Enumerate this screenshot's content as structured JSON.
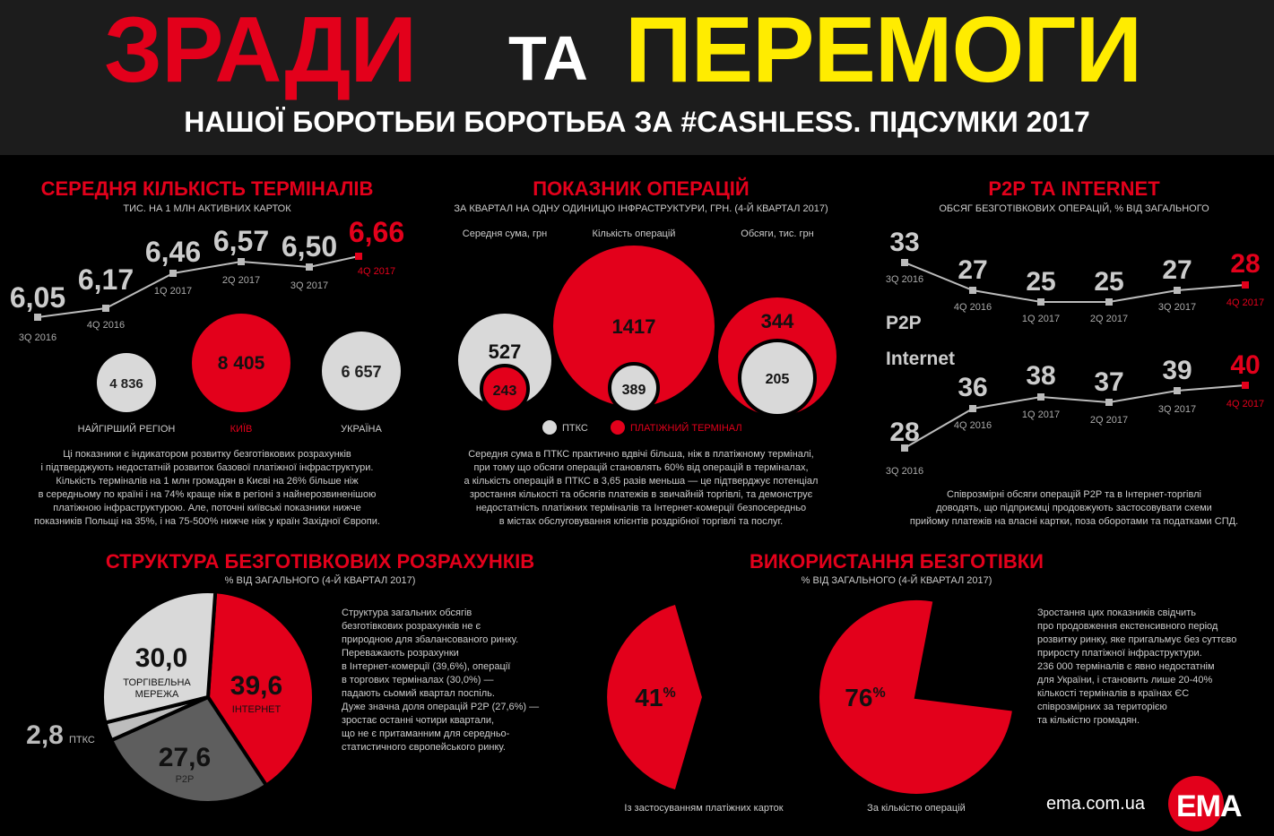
{
  "title": {
    "word1": "ЗРАДИ",
    "word2": "ТА",
    "word3": "ПЕРЕМОГИ",
    "subtitle": "НАШОЇ БОРОТЬБИ БОРОТЬБА ЗА #CASHLESS. ПІДСУМКИ 2017"
  },
  "colors": {
    "red": "#e3001b",
    "yellow": "#ffec00",
    "grey": "#d9d9d9",
    "dark_grey": "#5e5e5e"
  },
  "terminals": {
    "title": "СЕРЕДНЯ КІЛЬКІСТЬ ТЕРМІНАЛІВ",
    "subtitle": "ТИС. НА 1 МЛН АКТИВНИХ КАРТОК",
    "points": [
      {
        "value": "6,05",
        "label": "3Q 2016"
      },
      {
        "value": "6,17",
        "label": "4Q 2016"
      },
      {
        "value": "6,46",
        "label": "1Q 2017"
      },
      {
        "value": "6,57",
        "label": "2Q 2017"
      },
      {
        "value": "6,50",
        "label": "3Q 2017"
      },
      {
        "value": "6,66",
        "label": "4Q 2017"
      }
    ],
    "circles": [
      {
        "value": "4 836",
        "label": "НАЙГІРШИЙ РЕГІОН"
      },
      {
        "value": "8 405",
        "label": "КИЇВ"
      },
      {
        "value": "6 657",
        "label": "УКРАЇНА"
      }
    ],
    "text": [
      "Ці показники є індикатором розвитку безготівкових розрахунків",
      "і підтверджують недостатній розвиток базової платіжної інфраструктури.",
      "Кількість терміналів на 1 млн громадян в Києві на 26% більше ніж",
      "в середньому по країні і на 74% краще ніж в регіоні з найнерозвиненішою",
      "платіжною інфраструктурою. Але, поточні київські показники нижче",
      "показників Польщі на 35%, і на 75-500% нижче ніж у країн Західної Європи."
    ]
  },
  "operations": {
    "title": "ПОКАЗНИК ОПЕРАЦІЙ",
    "subtitle": "ЗА КВАРТАЛ НА ОДНУ ОДИНИЦЮ ІНФРАСТРУКТУРИ, ГРН. (4-Й КВАРТАЛ 2017)",
    "groups": [
      {
        "label": "Середня сума, грн",
        "ptks": "527",
        "terminal": "243"
      },
      {
        "label": "Кількість операцій",
        "ptks": "389",
        "terminal": "1417"
      },
      {
        "label": "Обсяги, тис. грн",
        "ptks": "205",
        "terminal": "344"
      }
    ],
    "legend": {
      "ptks": "ПТКС",
      "terminal": "ПЛАТІЖНИЙ ТЕРМІНАЛ"
    },
    "text": [
      "Середня сума в ПТКС практично вдвічі більша, ніж в платіжному терміналі,",
      "при тому що обсяги операцій становлять 60% від операцій в терміналах,",
      "а кількість операцій в ПТКС в 3,65 разів меньша — це підтверджує потенціал",
      "зростання кількості та обсягів платежів в звичайній торгівлі, та демонструє",
      "недостатність платіжних терміналів та Інтернет-комерції безпосередньо",
      "в містах обслуговування клієнтів роздрібної торгівлі та послуг."
    ]
  },
  "p2p": {
    "title": "P2P ТА INTERNET",
    "subtitle": "ОБСЯГ БЕЗГОТІВКОВИХ ОПЕРАЦІЙ, % ВІД ЗАГАЛЬНОГО",
    "quarters": [
      "3Q 2016",
      "4Q 2016",
      "1Q 2017",
      "2Q 2017",
      "3Q 2017",
      "4Q 2017"
    ],
    "p2p_label": "P2P",
    "p2p_values": [
      "33",
      "27",
      "25",
      "25",
      "27",
      "28"
    ],
    "internet_label": "Internet",
    "internet_values": [
      "28",
      "36",
      "38",
      "37",
      "39",
      "40"
    ],
    "text": [
      "Співрозмірні обсяги операцій P2P та в Інтернет-торгівлі",
      "доводять, що підприємці продовжують застосовувати схеми",
      "прийому платежів на власні картки, поза оборотами та податками СПД."
    ]
  },
  "structure": {
    "title": "СТРУКТУРА БЕЗГОТІВКОВИХ РОЗРАХУНКІВ",
    "subtitle": "% ВІД ЗАГАЛЬНОГО (4-Й КВАРТАЛ 2017)",
    "slices": [
      {
        "value": "39,6",
        "label": "ІНТЕРНЕТ",
        "num": 39.6
      },
      {
        "value": "27,6",
        "label": "P2P",
        "num": 27.6
      },
      {
        "value": "2,8",
        "label": "ПТКС",
        "num": 2.8
      },
      {
        "value": "30,0",
        "label": "ТОРГІВЕЛЬНА",
        "label2": "МЕРЕЖА",
        "num": 30.0
      }
    ],
    "text": [
      "Структура загальних обсягів",
      "безготівкових розрахунків не є",
      "природною для збалансованого ринку.",
      "Переважають розрахунки",
      "в Інтернет-комерції (39,6%), операції",
      "в торгових терміналах (30,0%) —",
      "падають сьомий квартал поспіль.",
      "Дуже значна доля операцій P2P (27,6%) —",
      "зростає останні чотири квартали,",
      "що не є притаманним для середньо-",
      "статистичного європейського ринку."
    ]
  },
  "usage": {
    "title": "ВИКОРИСТАННЯ БЕЗГОТІВКИ",
    "subtitle": "% ВІД ЗАГАЛЬНОГО (4-Й КВАРТАЛ 2017)",
    "pie1": {
      "value": "41",
      "pct": "%",
      "num": 41,
      "label": "Із застосуванням платіжних карток"
    },
    "pie2": {
      "value": "76",
      "pct": "%",
      "num": 76,
      "label": "За кількістю операцій"
    },
    "text": [
      "Зростання цих показників свідчить",
      "про продовження екстенсивного період",
      "розвитку ринку, яке пригальмує без суттєво",
      "приросту платіжної інфраструктури.",
      "236 000 терміналів є явно недостатнім",
      "для України, і становить лише 20-40%",
      "кількості терміналів в країнах ЄС",
      "співрозмірних за територією",
      "та кількістю громадян."
    ]
  },
  "footer": {
    "site": "ema.com.ua",
    "logo": "EMA"
  }
}
